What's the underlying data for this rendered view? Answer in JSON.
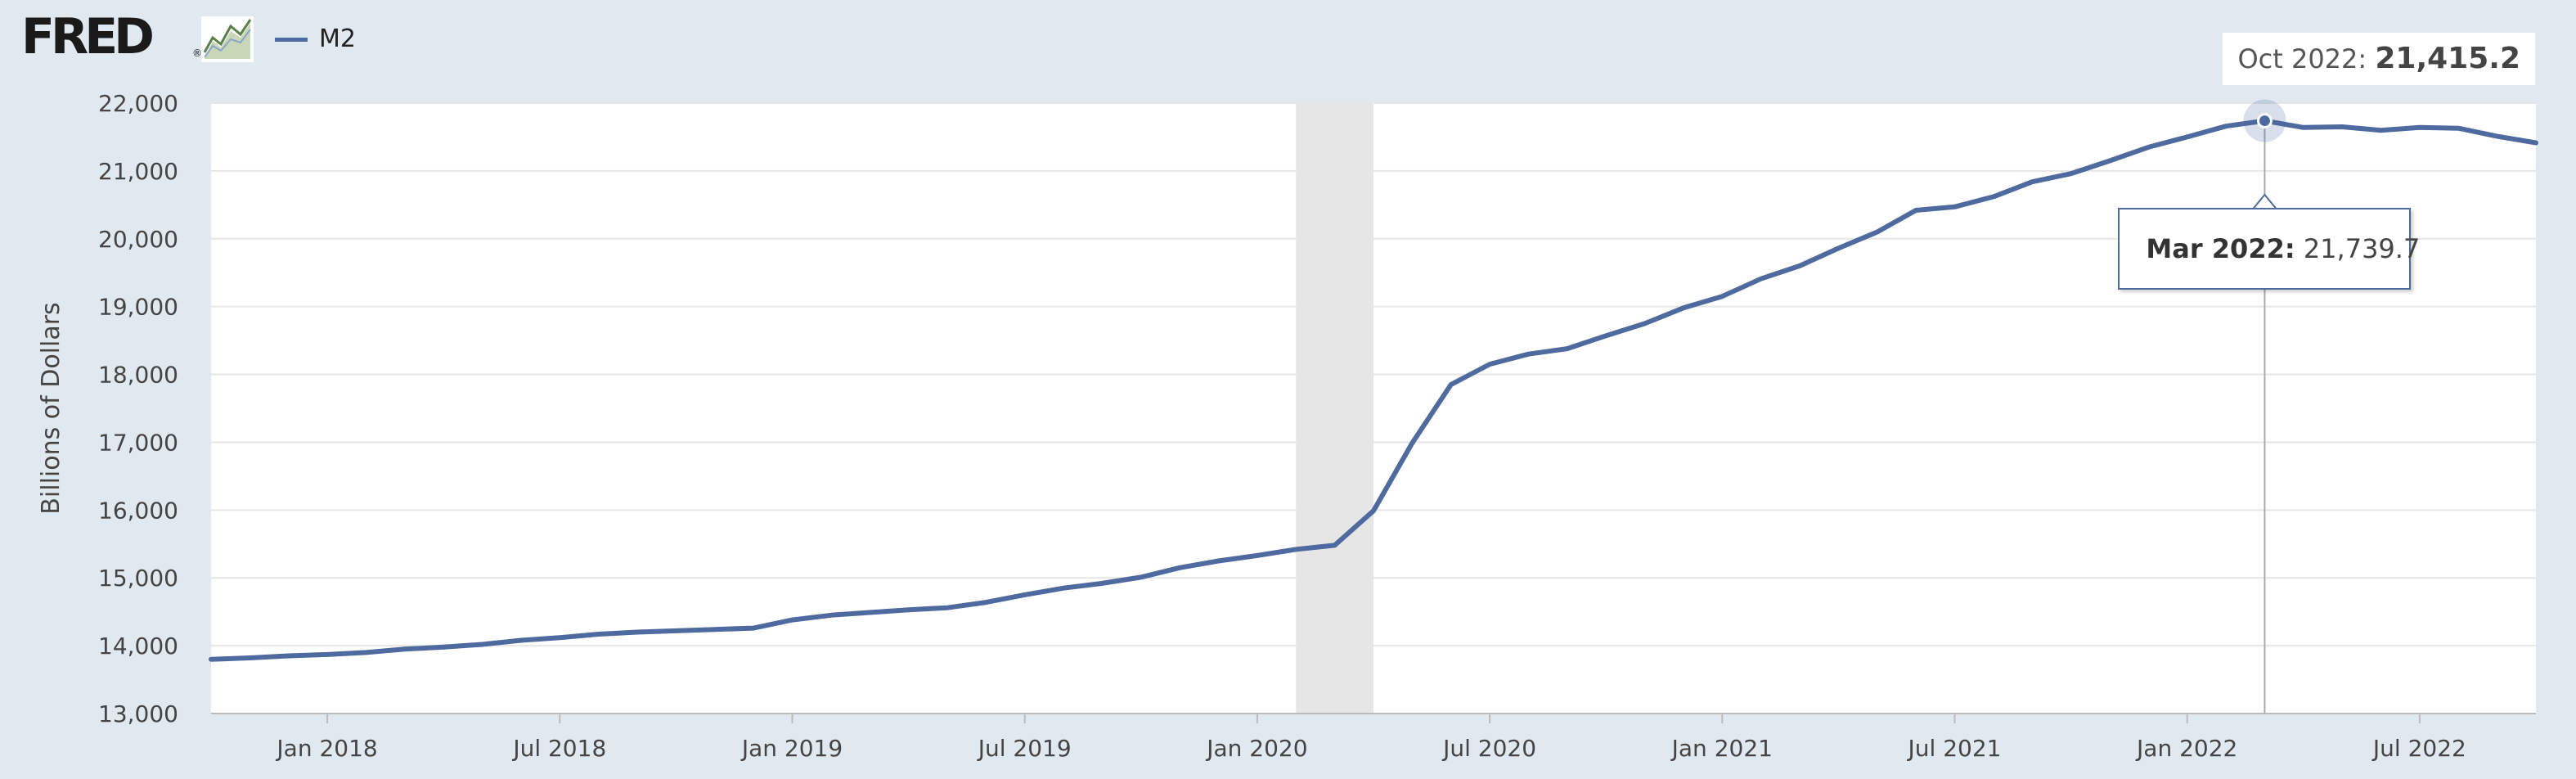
{
  "header": {
    "logo_text": "FRED",
    "logo_mark": "®",
    "graph_icon": "line-chart-icon",
    "latest_date": "Oct 2022:",
    "latest_value": "21,415.2"
  },
  "tooltip": {
    "date": "Mar 2022:",
    "value": "21,739.7"
  },
  "colors": {
    "background": "#e1e9f0",
    "plot": "#ffffff",
    "line": "#4e6a9e",
    "recession": "#e6e6e6",
    "grid": "#e6e6e6"
  },
  "chart_data": {
    "type": "line",
    "ylabel": "Billions of Dollars",
    "ylim": [
      13000,
      22000
    ],
    "yticks": [
      "13,000",
      "14,000",
      "15,000",
      "16,000",
      "17,000",
      "18,000",
      "19,000",
      "20,000",
      "21,000",
      "22,000"
    ],
    "xlim": [
      "2017-10",
      "2022-10"
    ],
    "xticks": [
      {
        "date": "2018-01",
        "label": "Jan 2018"
      },
      {
        "date": "2018-07",
        "label": "Jul 2018"
      },
      {
        "date": "2019-01",
        "label": "Jan 2019"
      },
      {
        "date": "2019-07",
        "label": "Jul 2019"
      },
      {
        "date": "2020-01",
        "label": "Jan 2020"
      },
      {
        "date": "2020-07",
        "label": "Jul 2020"
      },
      {
        "date": "2021-01",
        "label": "Jan 2021"
      },
      {
        "date": "2021-07",
        "label": "Jul 2021"
      },
      {
        "date": "2022-01",
        "label": "Jan 2022"
      },
      {
        "date": "2022-07",
        "label": "Jul 2022"
      }
    ],
    "recession": [
      "2020-02",
      "2020-04"
    ],
    "grid": true,
    "highlight": {
      "date": "2022-03",
      "value": 21739.7
    },
    "series": [
      {
        "name": "M2",
        "color": "#4e6a9e",
        "x": [
          "2017-10",
          "2017-11",
          "2017-12",
          "2018-01",
          "2018-02",
          "2018-03",
          "2018-04",
          "2018-05",
          "2018-06",
          "2018-07",
          "2018-08",
          "2018-09",
          "2018-10",
          "2018-11",
          "2018-12",
          "2019-01",
          "2019-02",
          "2019-03",
          "2019-04",
          "2019-05",
          "2019-06",
          "2019-07",
          "2019-08",
          "2019-09",
          "2019-10",
          "2019-11",
          "2019-12",
          "2020-01",
          "2020-02",
          "2020-03",
          "2020-04",
          "2020-05",
          "2020-06",
          "2020-07",
          "2020-08",
          "2020-09",
          "2020-10",
          "2020-11",
          "2020-12",
          "2021-01",
          "2021-02",
          "2021-03",
          "2021-04",
          "2021-05",
          "2021-06",
          "2021-07",
          "2021-08",
          "2021-09",
          "2021-10",
          "2021-11",
          "2021-12",
          "2022-01",
          "2022-02",
          "2022-03",
          "2022-04",
          "2022-05",
          "2022-06",
          "2022-07",
          "2022-08",
          "2022-09",
          "2022-10"
        ],
        "values": [
          13800,
          13820,
          13850,
          13870,
          13900,
          13950,
          13980,
          14020,
          14080,
          14120,
          14170,
          14200,
          14220,
          14240,
          14260,
          14380,
          14450,
          14490,
          14530,
          14560,
          14640,
          14750,
          14850,
          14920,
          15010,
          15150,
          15250,
          15330,
          15420,
          15480,
          15990,
          16990,
          17850,
          18150,
          18300,
          18380,
          18570,
          18750,
          18980,
          19150,
          19410,
          19600,
          19860,
          20100,
          20420,
          20470,
          20620,
          20840,
          20960,
          21150,
          21350,
          21500,
          21660,
          21739.7,
          21640,
          21650,
          21600,
          21640,
          21630,
          21510,
          21415.2
        ]
      }
    ]
  }
}
